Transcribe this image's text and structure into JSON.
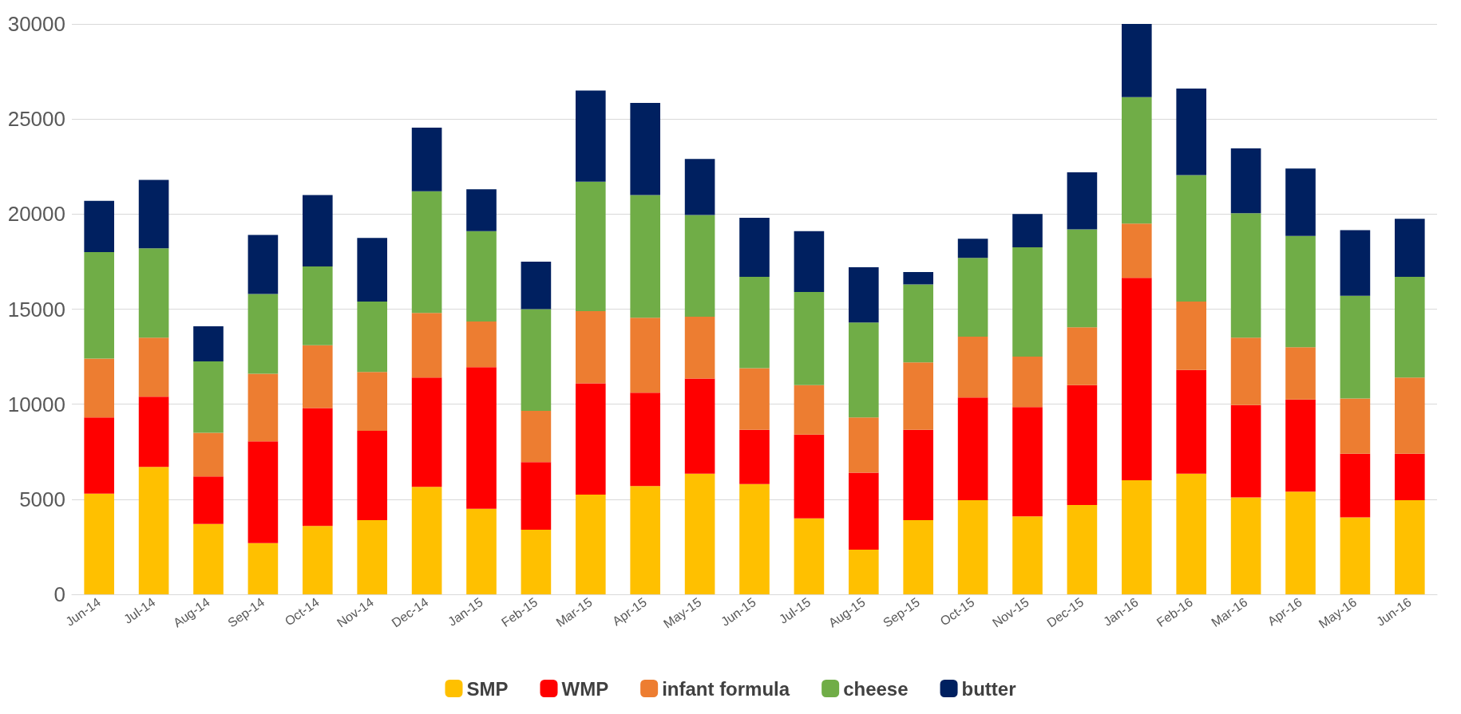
{
  "chart_data": {
    "type": "bar",
    "stacked": true,
    "categories": [
      "Jun-14",
      "Jul-14",
      "Aug-14",
      "Sep-14",
      "Oct-14",
      "Nov-14",
      "Dec-14",
      "Jan-15",
      "Feb-15",
      "Mar-15",
      "Apr-15",
      "May-15",
      "Jun-15",
      "Jul-15",
      "Aug-15",
      "Sep-15",
      "Oct-15",
      "Nov-15",
      "Dec-15",
      "Jan-16",
      "Feb-16",
      "Mar-16",
      "Apr-16",
      "May-16",
      "Jun-16"
    ],
    "series": [
      {
        "name": "SMP",
        "color": "#ffc000",
        "values": [
          5300,
          6700,
          3700,
          2700,
          3600,
          3900,
          5650,
          4500,
          3400,
          5250,
          5700,
          6350,
          5800,
          4000,
          2350,
          3900,
          4950,
          4100,
          4700,
          6000,
          6350,
          5100,
          5400,
          4050,
          4950
        ]
      },
      {
        "name": "WMP",
        "color": "#ff0000",
        "values": [
          4000,
          3700,
          2500,
          5350,
          6200,
          4700,
          5750,
          7450,
          3550,
          5850,
          4900,
          5000,
          2850,
          4400,
          4050,
          4750,
          5400,
          5750,
          6300,
          10650,
          5450,
          4850,
          4850,
          3350,
          2450
        ]
      },
      {
        "name": "infant formula",
        "color": "#ed7d31",
        "values": [
          3100,
          3100,
          2300,
          3550,
          3300,
          3100,
          3400,
          2400,
          2700,
          3800,
          3950,
          3250,
          3250,
          2600,
          2900,
          3550,
          3200,
          2650,
          3050,
          2850,
          3600,
          3550,
          2750,
          2900,
          4000
        ]
      },
      {
        "name": "cheese",
        "color": "#70ad47",
        "values": [
          5600,
          4700,
          3750,
          4200,
          4150,
          3700,
          6400,
          4750,
          5350,
          6800,
          6450,
          5350,
          4800,
          4900,
          5000,
          4100,
          4150,
          5750,
          5150,
          6650,
          6650,
          6550,
          5850,
          5400,
          5300
        ]
      },
      {
        "name": "butter",
        "color": "#002060",
        "values": [
          2700,
          3600,
          1850,
          3100,
          3750,
          3350,
          3350,
          2200,
          2500,
          4800,
          4850,
          2950,
          3100,
          3200,
          2900,
          650,
          1000,
          1750,
          3000,
          3850,
          4550,
          3400,
          3550,
          3450,
          3050
        ]
      }
    ],
    "ylim": [
      0,
      30000
    ],
    "yticks": [
      0,
      5000,
      10000,
      15000,
      20000,
      25000,
      30000
    ],
    "grid": "y",
    "legend": "bottom"
  }
}
